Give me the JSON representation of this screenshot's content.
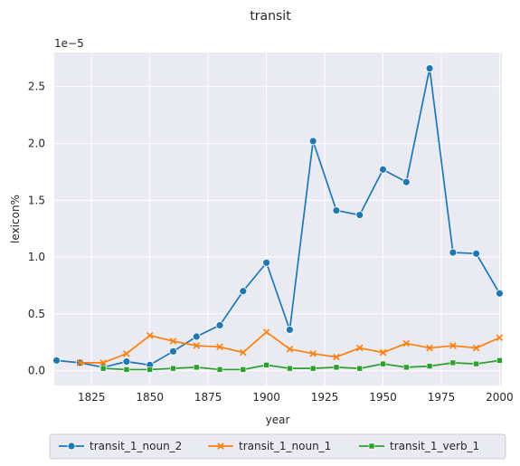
{
  "chart_data": {
    "type": "line",
    "title": "transit",
    "xlabel": "year",
    "ylabel": "lexicon%",
    "y_offset_label": "1e−5",
    "xlim": [
      1809,
      2001
    ],
    "ylim": [
      -0.13,
      2.8
    ],
    "xticks": [
      1825,
      1850,
      1875,
      1900,
      1925,
      1950,
      1975,
      2000
    ],
    "xtick_labels": [
      "1825",
      "1850",
      "1875",
      "1900",
      "1925",
      "1950",
      "1975",
      "2000"
    ],
    "yticks": [
      0.0,
      0.5,
      1.0,
      1.5,
      2.0,
      2.5
    ],
    "ytick_labels": [
      "0.0",
      "0.5",
      "1.0",
      "1.5",
      "2.0",
      "2.5"
    ],
    "grid": true,
    "legend_position": "bottom",
    "series": [
      {
        "name": "transit_1_noun_2",
        "color": "#1f77b4",
        "marker": "circle",
        "points": [
          [
            1810,
            0.09
          ],
          [
            1820,
            0.07
          ],
          [
            1830,
            0.03
          ],
          [
            1840,
            0.08
          ],
          [
            1850,
            0.05
          ],
          [
            1860,
            0.17
          ],
          [
            1870,
            0.3
          ],
          [
            1880,
            0.4
          ],
          [
            1890,
            0.7
          ],
          [
            1900,
            0.95
          ],
          [
            1910,
            0.36
          ],
          [
            1920,
            2.02
          ],
          [
            1930,
            1.41
          ],
          [
            1940,
            1.37
          ],
          [
            1950,
            1.77
          ],
          [
            1960,
            1.66
          ],
          [
            1970,
            2.66
          ],
          [
            1980,
            1.04
          ],
          [
            1990,
            1.03
          ],
          [
            2000,
            0.68
          ]
        ]
      },
      {
        "name": "transit_1_noun_1",
        "color": "#ff7f0e",
        "marker": "x",
        "points": [
          [
            1820,
            0.07
          ],
          [
            1830,
            0.07
          ],
          [
            1840,
            0.15
          ],
          [
            1850,
            0.31
          ],
          [
            1860,
            0.26
          ],
          [
            1870,
            0.22
          ],
          [
            1880,
            0.21
          ],
          [
            1890,
            0.16
          ],
          [
            1900,
            0.34
          ],
          [
            1910,
            0.19
          ],
          [
            1920,
            0.15
          ],
          [
            1930,
            0.12
          ],
          [
            1940,
            0.2
          ],
          [
            1950,
            0.16
          ],
          [
            1960,
            0.24
          ],
          [
            1970,
            0.2
          ],
          [
            1980,
            0.22
          ],
          [
            1990,
            0.2
          ],
          [
            2000,
            0.29
          ]
        ]
      },
      {
        "name": "transit_1_verb_1",
        "color": "#2ca02c",
        "marker": "square",
        "points": [
          [
            1830,
            0.02
          ],
          [
            1840,
            0.01
          ],
          [
            1850,
            0.01
          ],
          [
            1860,
            0.02
          ],
          [
            1870,
            0.03
          ],
          [
            1880,
            0.01
          ],
          [
            1890,
            0.01
          ],
          [
            1900,
            0.05
          ],
          [
            1910,
            0.02
          ],
          [
            1920,
            0.02
          ],
          [
            1930,
            0.03
          ],
          [
            1940,
            0.02
          ],
          [
            1950,
            0.06
          ],
          [
            1960,
            0.03
          ],
          [
            1970,
            0.04
          ],
          [
            1980,
            0.07
          ],
          [
            1990,
            0.06
          ],
          [
            2000,
            0.09
          ]
        ]
      }
    ]
  }
}
